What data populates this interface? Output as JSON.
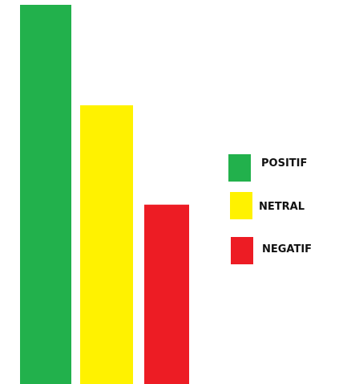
{
  "chart_data": {
    "type": "bar",
    "title": "",
    "xlabel": "",
    "ylabel": "",
    "categories": [
      "POSITIF",
      "NETRAL",
      "NEGATIF"
    ],
    "values": [
      100,
      73.5,
      47.3
    ],
    "ylim": [
      0,
      100
    ],
    "colors": [
      "#22b14c",
      "#fff200",
      "#ed1c24"
    ],
    "legend": [
      {
        "label": "POSITIF",
        "color": "#22b14c"
      },
      {
        "label": "NETRAL",
        "color": "#fff200"
      },
      {
        "label": "NEGATIF",
        "color": "#ed1c24"
      }
    ],
    "legend_position": "right",
    "grid": false
  }
}
